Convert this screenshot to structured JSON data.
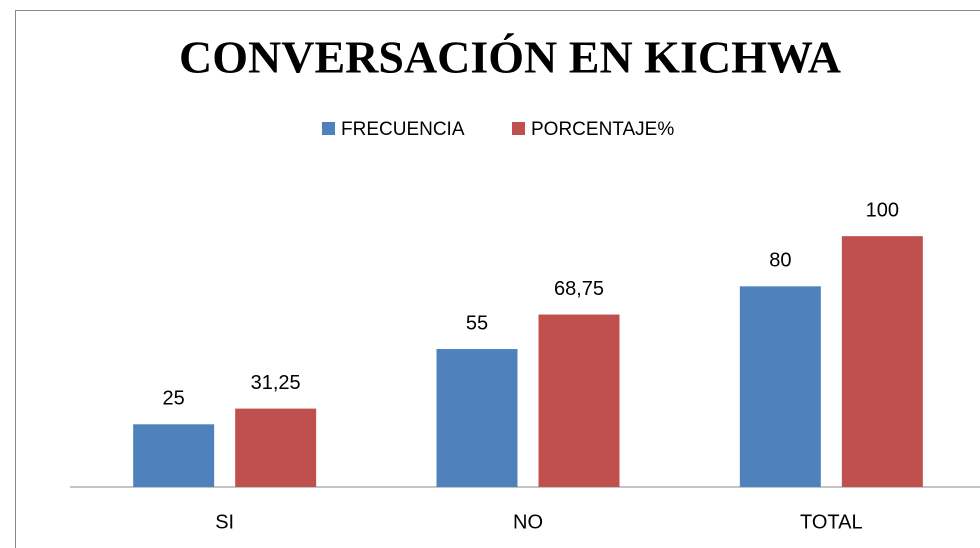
{
  "chart_data": {
    "type": "bar",
    "title": "CONVERSACIÓN EN KICHWA",
    "categories": [
      "SI",
      "NO",
      "TOTAL"
    ],
    "series": [
      {
        "name": "FRECUENCIA",
        "color": "#4f81bd",
        "values": [
          25,
          55,
          80
        ],
        "value_labels": [
          "25",
          "55",
          "80"
        ]
      },
      {
        "name": "PORCENTAJE%",
        "color": "#c0504d",
        "values": [
          31.25,
          68.75,
          100
        ],
        "value_labels": [
          "31,25",
          "68,75",
          "100"
        ]
      }
    ],
    "ylim": [
      0,
      120
    ],
    "legend": "top"
  }
}
